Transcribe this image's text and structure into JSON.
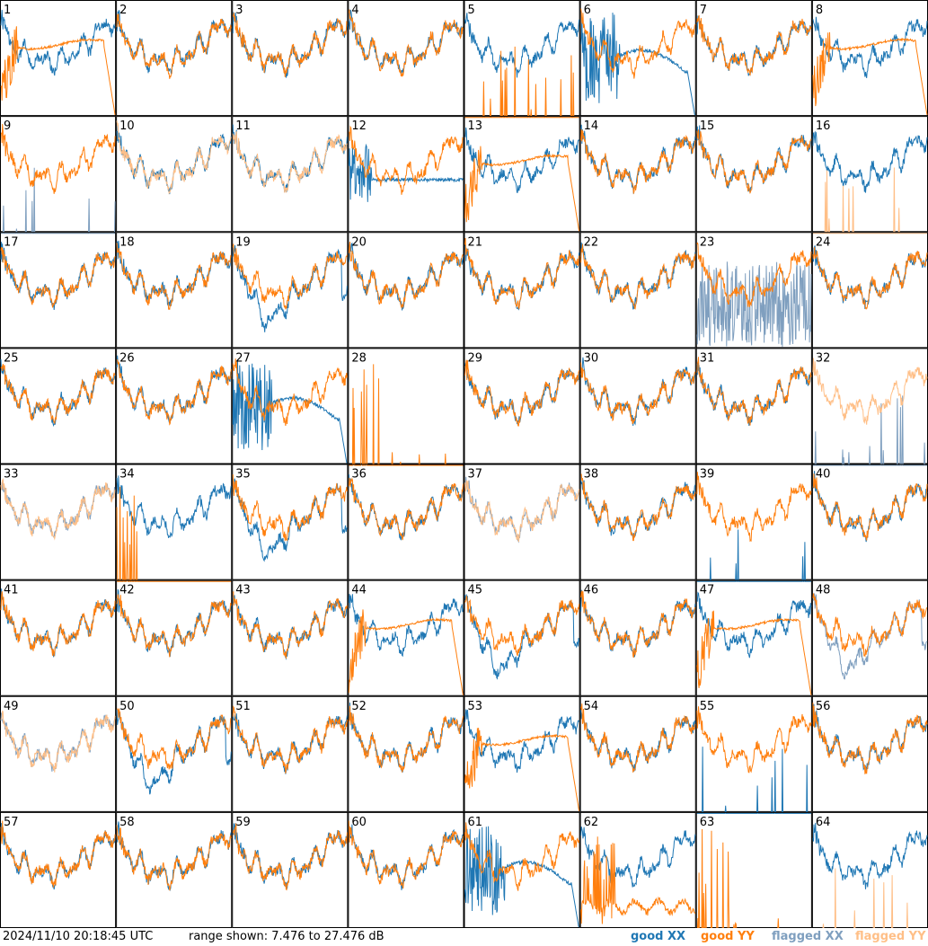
{
  "footer": {
    "timestamp": "2024/11/10 20:18:45 UTC",
    "range_text": "range shown: 7.476 to 27.476 dB"
  },
  "legend": [
    {
      "label": "good XX",
      "color": "#1f77b4"
    },
    {
      "label": "good YY",
      "color": "#ff7f0e"
    },
    {
      "label": "flagged XX",
      "color": "#7f9fbf"
    },
    {
      "label": "flagged YY",
      "color": "#ffbf87"
    }
  ],
  "colors": {
    "good_xx": "#1f77b4",
    "good_yy": "#ff7f0e",
    "flagged_xx": "#7f9fbf",
    "flagged_yy": "#ffbf87",
    "grid": "#000000"
  },
  "chart_data": {
    "type": "line",
    "grid": {
      "rows": 8,
      "cols": 8
    },
    "ylim": [
      7.476,
      27.476
    ],
    "yunits": "dB",
    "panels": [
      {
        "id": "1",
        "xx": "good",
        "yy": "good",
        "xx_shape": "normal",
        "yy_shape": "rolloff"
      },
      {
        "id": "2",
        "xx": "good",
        "yy": "good",
        "xx_shape": "normal",
        "yy_shape": "normal"
      },
      {
        "id": "3",
        "xx": "good",
        "yy": "good",
        "xx_shape": "normal",
        "yy_shape": "normal"
      },
      {
        "id": "4",
        "xx": "good",
        "yy": "good",
        "xx_shape": "normal",
        "yy_shape": "normal"
      },
      {
        "id": "5",
        "xx": "good",
        "yy": "good",
        "xx_shape": "normal",
        "yy_shape": "spikes"
      },
      {
        "id": "6",
        "xx": "good",
        "yy": "good",
        "xx_shape": "hump",
        "yy_shape": "normal"
      },
      {
        "id": "7",
        "xx": "good",
        "yy": "good",
        "xx_shape": "normal",
        "yy_shape": "normal"
      },
      {
        "id": "8",
        "xx": "good",
        "yy": "good",
        "xx_shape": "normal",
        "yy_shape": "rolloff"
      },
      {
        "id": "9",
        "xx": "flagged",
        "yy": "good",
        "xx_shape": "spikes",
        "yy_shape": "normal"
      },
      {
        "id": "10",
        "xx": "good",
        "yy": "flagged",
        "xx_shape": "normal",
        "yy_shape": "normal"
      },
      {
        "id": "11",
        "xx": "good",
        "yy": "flagged",
        "xx_shape": "normal",
        "yy_shape": "normal"
      },
      {
        "id": "12",
        "xx": "good",
        "yy": "good",
        "xx_shape": "flat",
        "yy_shape": "normal"
      },
      {
        "id": "13",
        "xx": "good",
        "yy": "good",
        "xx_shape": "normal",
        "yy_shape": "rolloff"
      },
      {
        "id": "14",
        "xx": "good",
        "yy": "good",
        "xx_shape": "normal",
        "yy_shape": "normal"
      },
      {
        "id": "15",
        "xx": "good",
        "yy": "good",
        "xx_shape": "normal",
        "yy_shape": "normal"
      },
      {
        "id": "16",
        "xx": "good",
        "yy": "flagged",
        "xx_shape": "normal",
        "yy_shape": "spikes"
      },
      {
        "id": "17",
        "xx": "good",
        "yy": "good",
        "xx_shape": "normal",
        "yy_shape": "normal"
      },
      {
        "id": "18",
        "xx": "good",
        "yy": "good",
        "xx_shape": "normal",
        "yy_shape": "normal"
      },
      {
        "id": "19",
        "xx": "good",
        "yy": "good",
        "xx_shape": "dip",
        "yy_shape": "normal"
      },
      {
        "id": "20",
        "xx": "good",
        "yy": "good",
        "xx_shape": "normal",
        "yy_shape": "normal"
      },
      {
        "id": "21",
        "xx": "good",
        "yy": "good",
        "xx_shape": "normal",
        "yy_shape": "normal"
      },
      {
        "id": "22",
        "xx": "good",
        "yy": "good",
        "xx_shape": "normal",
        "yy_shape": "normal"
      },
      {
        "id": "23",
        "xx": "flagged",
        "yy": "good",
        "xx_shape": "noisy",
        "yy_shape": "normal"
      },
      {
        "id": "24",
        "xx": "good",
        "yy": "good",
        "xx_shape": "normal",
        "yy_shape": "normal"
      },
      {
        "id": "25",
        "xx": "good",
        "yy": "good",
        "xx_shape": "normal",
        "yy_shape": "normal"
      },
      {
        "id": "26",
        "xx": "good",
        "yy": "good",
        "xx_shape": "normal",
        "yy_shape": "normal"
      },
      {
        "id": "27",
        "xx": "good",
        "yy": "good",
        "xx_shape": "hump",
        "yy_shape": "normal"
      },
      {
        "id": "28",
        "xx": "good",
        "yy": "good",
        "xx_shape": "none",
        "yy_shape": "dead"
      },
      {
        "id": "29",
        "xx": "good",
        "yy": "good",
        "xx_shape": "normal",
        "yy_shape": "normal"
      },
      {
        "id": "30",
        "xx": "good",
        "yy": "good",
        "xx_shape": "normal",
        "yy_shape": "normal"
      },
      {
        "id": "31",
        "xx": "good",
        "yy": "good",
        "xx_shape": "normal",
        "yy_shape": "normal"
      },
      {
        "id": "32",
        "xx": "flagged",
        "yy": "flagged",
        "xx_shape": "spikes",
        "yy_shape": "normal"
      },
      {
        "id": "33",
        "xx": "flagged",
        "yy": "flagged",
        "xx_shape": "normal",
        "yy_shape": "normal"
      },
      {
        "id": "34",
        "xx": "good",
        "yy": "good",
        "xx_shape": "normal",
        "yy_shape": "dead"
      },
      {
        "id": "35",
        "xx": "good",
        "yy": "good",
        "xx_shape": "dip",
        "yy_shape": "normal"
      },
      {
        "id": "36",
        "xx": "good",
        "yy": "good",
        "xx_shape": "normal",
        "yy_shape": "normal"
      },
      {
        "id": "37",
        "xx": "flagged",
        "yy": "flagged",
        "xx_shape": "normal",
        "yy_shape": "normal"
      },
      {
        "id": "38",
        "xx": "good",
        "yy": "good",
        "xx_shape": "normal",
        "yy_shape": "normal"
      },
      {
        "id": "39",
        "xx": "good",
        "yy": "good",
        "xx_shape": "spikes",
        "yy_shape": "normal"
      },
      {
        "id": "40",
        "xx": "good",
        "yy": "good",
        "xx_shape": "normal",
        "yy_shape": "normal"
      },
      {
        "id": "41",
        "xx": "good",
        "yy": "good",
        "xx_shape": "normal",
        "yy_shape": "normal"
      },
      {
        "id": "42",
        "xx": "good",
        "yy": "good",
        "xx_shape": "normal",
        "yy_shape": "normal"
      },
      {
        "id": "43",
        "xx": "good",
        "yy": "good",
        "xx_shape": "normal",
        "yy_shape": "normal"
      },
      {
        "id": "44",
        "xx": "good",
        "yy": "good",
        "xx_shape": "normal",
        "yy_shape": "rolloff"
      },
      {
        "id": "45",
        "xx": "good",
        "yy": "good",
        "xx_shape": "dip",
        "yy_shape": "normal"
      },
      {
        "id": "46",
        "xx": "good",
        "yy": "good",
        "xx_shape": "normal",
        "yy_shape": "normal"
      },
      {
        "id": "47",
        "xx": "good",
        "yy": "good",
        "xx_shape": "normal",
        "yy_shape": "rolloff"
      },
      {
        "id": "48",
        "xx": "flagged",
        "yy": "good",
        "xx_shape": "dip",
        "yy_shape": "normal"
      },
      {
        "id": "49",
        "xx": "flagged",
        "yy": "flagged",
        "xx_shape": "normal",
        "yy_shape": "normal"
      },
      {
        "id": "50",
        "xx": "good",
        "yy": "good",
        "xx_shape": "dip",
        "yy_shape": "normal"
      },
      {
        "id": "51",
        "xx": "good",
        "yy": "good",
        "xx_shape": "normal",
        "yy_shape": "normal"
      },
      {
        "id": "52",
        "xx": "good",
        "yy": "good",
        "xx_shape": "normal",
        "yy_shape": "normal"
      },
      {
        "id": "53",
        "xx": "good",
        "yy": "good",
        "xx_shape": "normal",
        "yy_shape": "rolloff"
      },
      {
        "id": "54",
        "xx": "good",
        "yy": "good",
        "xx_shape": "normal",
        "yy_shape": "normal"
      },
      {
        "id": "55",
        "xx": "good",
        "yy": "good",
        "xx_shape": "spikes",
        "yy_shape": "normal"
      },
      {
        "id": "56",
        "xx": "good",
        "yy": "good",
        "xx_shape": "normal",
        "yy_shape": "normal"
      },
      {
        "id": "57",
        "xx": "good",
        "yy": "good",
        "xx_shape": "normal",
        "yy_shape": "normal"
      },
      {
        "id": "58",
        "xx": "good",
        "yy": "good",
        "xx_shape": "normal",
        "yy_shape": "normal"
      },
      {
        "id": "59",
        "xx": "good",
        "yy": "good",
        "xx_shape": "normal",
        "yy_shape": "normal"
      },
      {
        "id": "60",
        "xx": "good",
        "yy": "good",
        "xx_shape": "normal",
        "yy_shape": "normal"
      },
      {
        "id": "61",
        "xx": "good",
        "yy": "good",
        "xx_shape": "hump",
        "yy_shape": "normal"
      },
      {
        "id": "62",
        "xx": "good",
        "yy": "good",
        "xx_shape": "normal",
        "yy_shape": "low"
      },
      {
        "id": "63",
        "xx": "good",
        "yy": "good",
        "xx_shape": "none",
        "yy_shape": "dead"
      },
      {
        "id": "64",
        "xx": "good",
        "yy": "flagged",
        "xx_shape": "normal",
        "yy_shape": "spikes"
      }
    ]
  }
}
